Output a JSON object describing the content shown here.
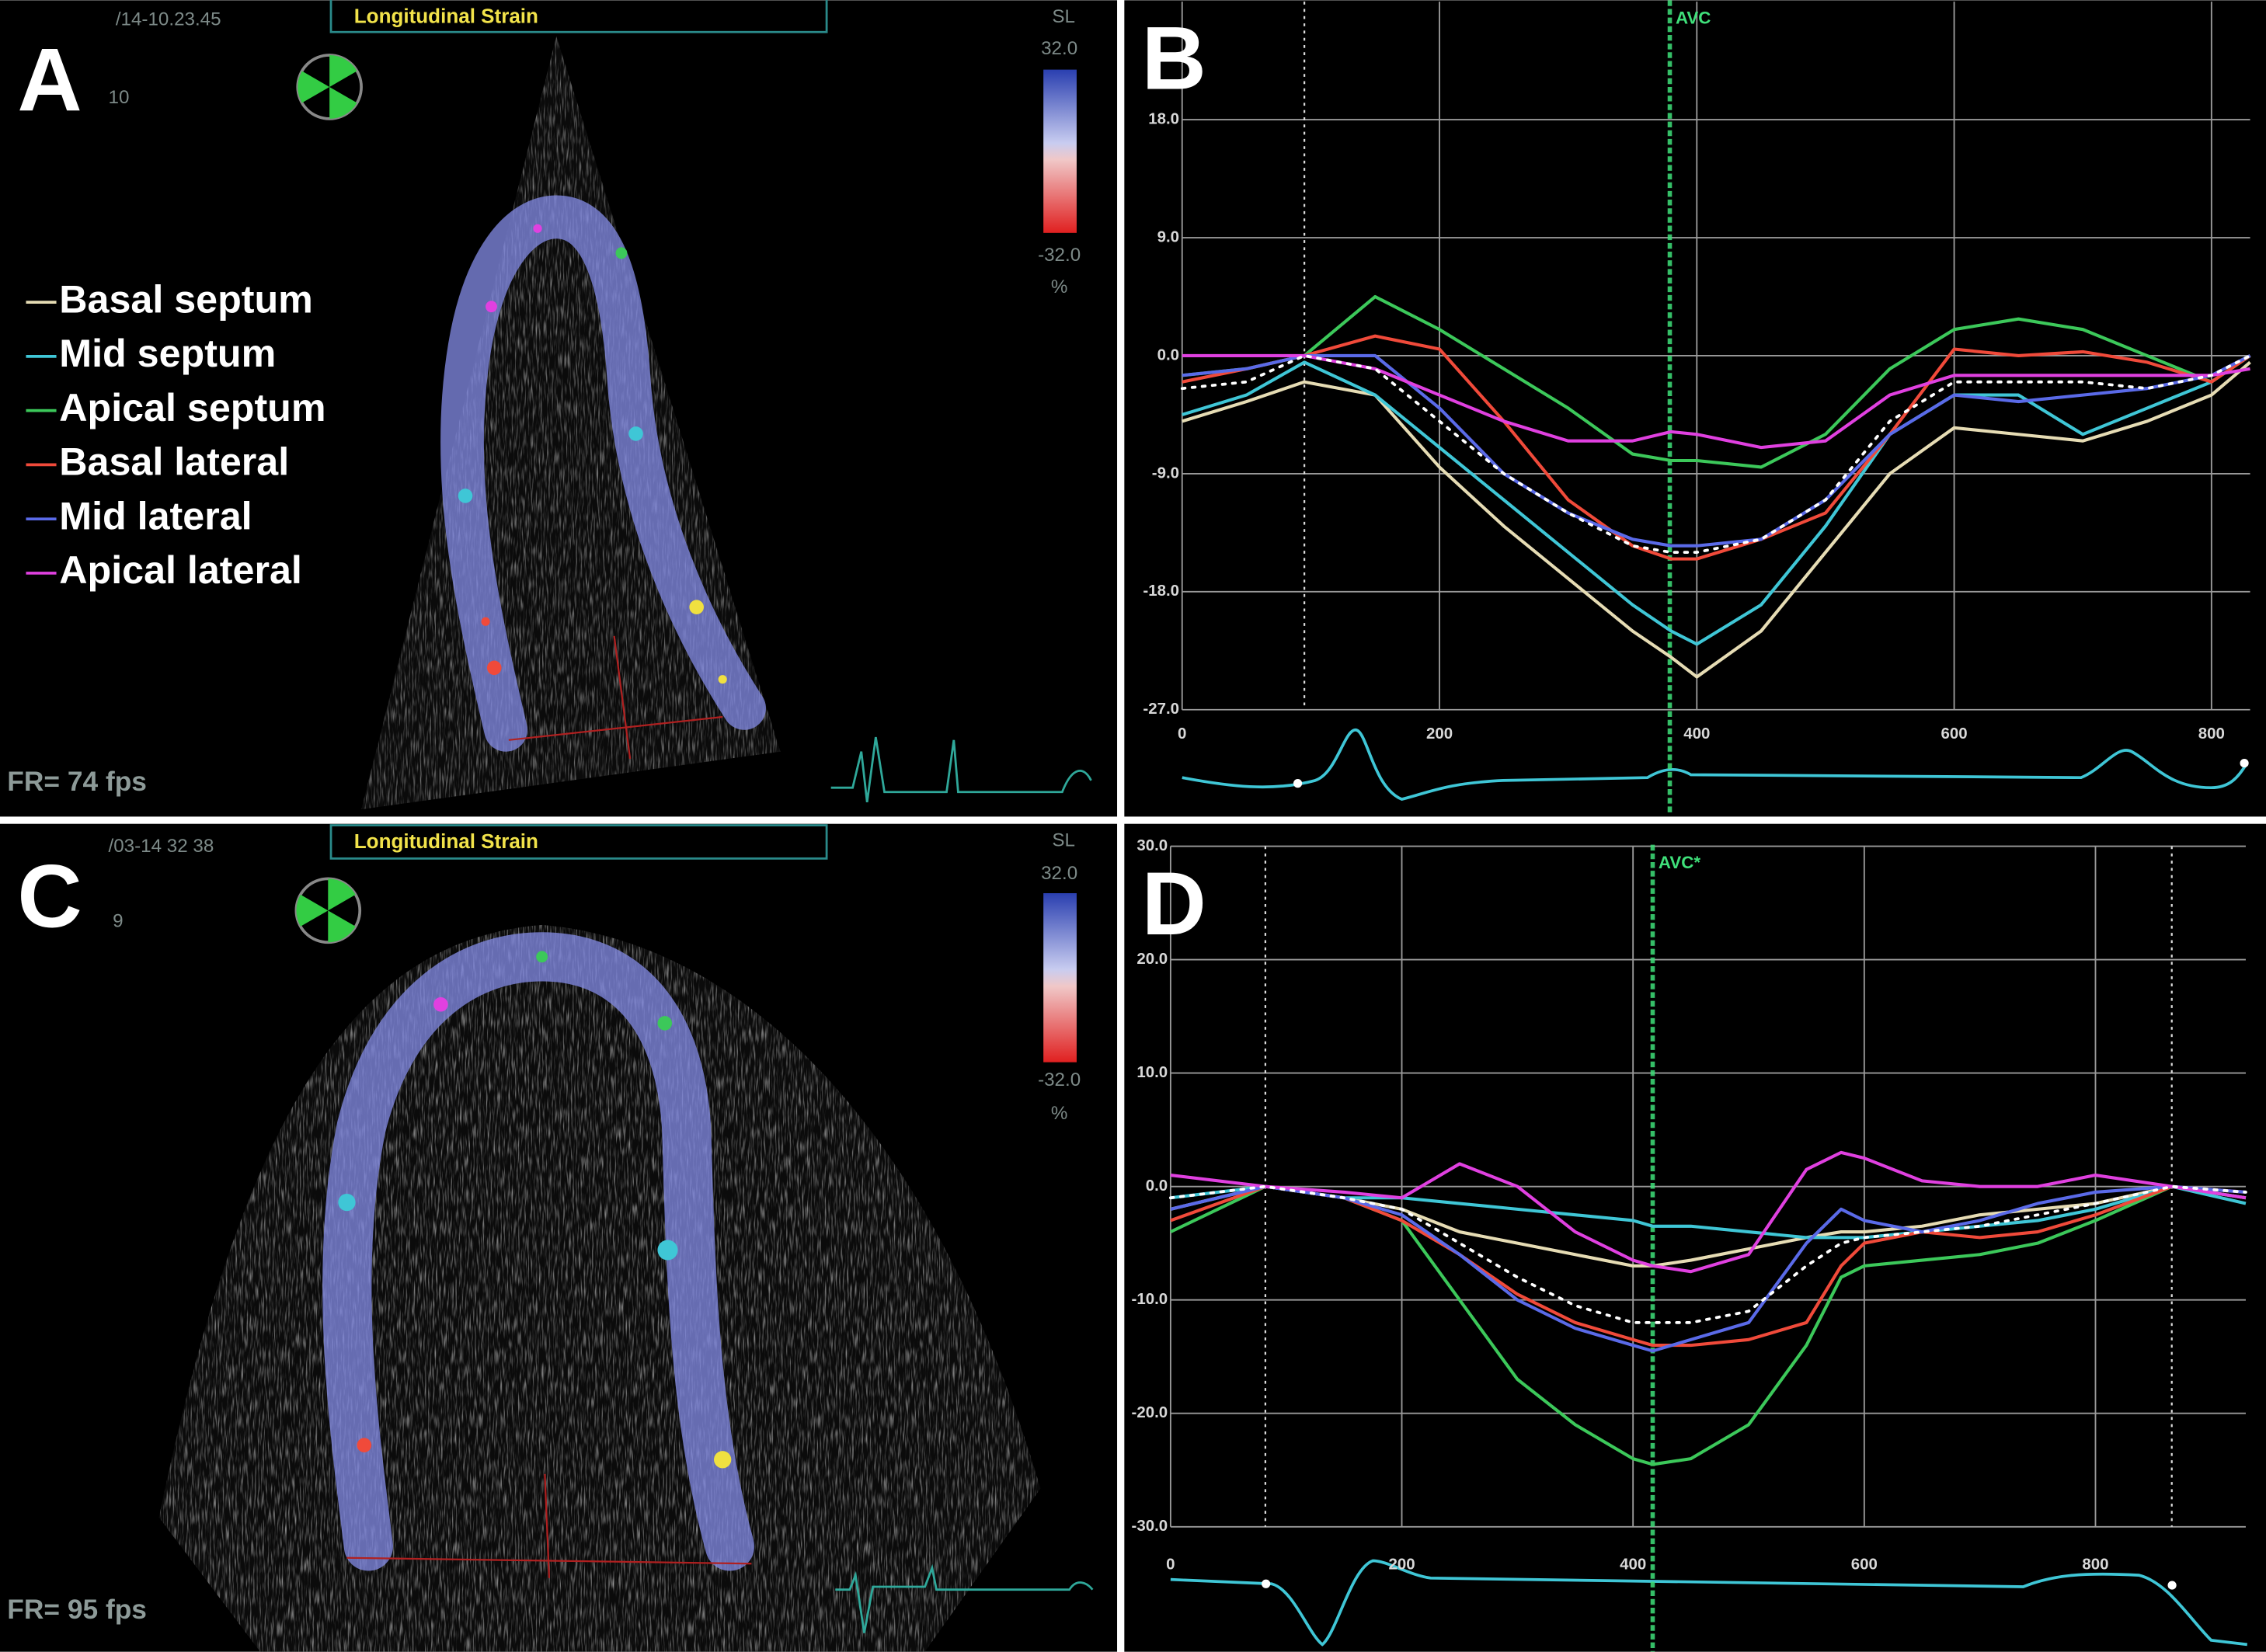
{
  "echo_panels": [
    {
      "label": "A",
      "timestamp": "/14-10.23.45",
      "frame_no": "10",
      "mode": "Longitudinal Strain",
      "scale_name": "SL",
      "scale_max": "32.0",
      "scale_min": "-32.0",
      "scale_unit": "%",
      "frame_rate": "FR=  74 fps"
    },
    {
      "label": "C",
      "timestamp": "/03-14 32 38",
      "frame_no": "9",
      "mode": "Longitudinal Strain",
      "scale_name": "SL",
      "scale_max": "32.0",
      "scale_min": "-32.0",
      "scale_unit": "%",
      "frame_rate": "FR=  95 fps"
    }
  ],
  "chart_data": [
    {
      "type": "line",
      "panel_label": "B",
      "x": [
        0,
        50,
        95,
        150,
        200,
        250,
        300,
        350,
        380,
        400,
        450,
        500,
        550,
        600,
        650,
        700,
        750,
        800,
        830
      ],
      "xlim": [
        0,
        830
      ],
      "xticks": [
        0,
        200,
        400,
        600,
        800
      ],
      "ylim": [
        -27,
        27
      ],
      "yticks": [
        {
          "value": 18,
          "label": "18.0"
        },
        {
          "value": 9,
          "label": "9.0"
        },
        {
          "value": 0,
          "label": "0.0"
        },
        {
          "value": -9,
          "label": "-9.0"
        },
        {
          "value": -18,
          "label": "-18.0"
        },
        {
          "value": -27,
          "label": "-27.0"
        }
      ],
      "grid": true,
      "markers": [
        {
          "x": 95,
          "style": "dotted"
        },
        {
          "x": 379,
          "label": "AVC",
          "color": "#3fe07a"
        }
      ],
      "series": [
        {
          "name": "Basal septum",
          "color": "#e6dcb4",
          "values": [
            -5,
            -3.5,
            -2,
            -3,
            -8.5,
            -13,
            -17,
            -21,
            -23,
            -24.5,
            -21,
            -15,
            -9,
            -5.5,
            -6,
            -6.5,
            -5,
            -3,
            -0.5
          ]
        },
        {
          "name": "Mid septum",
          "color": "#3fc6d6",
          "values": [
            -4.5,
            -3,
            -0.5,
            -3,
            -7,
            -11,
            -15,
            -19,
            -21,
            -22,
            -19,
            -13,
            -6,
            -3,
            -3,
            -6,
            -4,
            -2,
            0
          ]
        },
        {
          "name": "Apical septum",
          "color": "#3cc85a",
          "values": [
            -1.5,
            -1,
            0,
            4.5,
            2,
            -1,
            -4,
            -7.5,
            -8,
            -8,
            -8.5,
            -6,
            -1,
            2,
            2.8,
            2,
            0,
            -2,
            0
          ]
        },
        {
          "name": "Basal lateral",
          "color": "#f04a3a",
          "values": [
            -2,
            -1,
            0,
            1.5,
            0.5,
            -5,
            -11,
            -14.5,
            -15.5,
            -15.5,
            -14,
            -12,
            -6,
            0.5,
            0,
            0.3,
            -0.5,
            -2,
            0
          ]
        },
        {
          "name": "Mid lateral",
          "color": "#5a6ae8",
          "values": [
            -1.5,
            -1,
            0,
            0,
            -4,
            -9,
            -12,
            -14,
            -14.5,
            -14.5,
            -14,
            -11,
            -6,
            -3,
            -3.5,
            -3,
            -2.5,
            -1.5,
            0
          ]
        },
        {
          "name": "Apical lateral",
          "color": "#e040e0",
          "values": [
            0,
            0,
            0,
            -1,
            -3,
            -5,
            -6.5,
            -6.5,
            -5.8,
            -6,
            -7,
            -6.5,
            -3,
            -1.5,
            -1.5,
            -1.5,
            -1.5,
            -1.5,
            -1
          ]
        },
        {
          "color": "#ffffff",
          "style": "dotted",
          "values": [
            -2.5,
            -2,
            0,
            -1,
            -5,
            -9,
            -12,
            -14.5,
            -15,
            -15,
            -14,
            -11,
            -5,
            -2,
            -2,
            -2,
            -2.5,
            -1.5,
            0
          ]
        }
      ]
    },
    {
      "type": "line",
      "panel_label": "D",
      "x": [
        0,
        82,
        150,
        200,
        250,
        300,
        350,
        400,
        417,
        450,
        500,
        550,
        580,
        600,
        650,
        700,
        750,
        800,
        866,
        930
      ],
      "xlim": [
        0,
        930
      ],
      "xticks": [
        0,
        200,
        400,
        600,
        800
      ],
      "ylim": [
        -30,
        30
      ],
      "yticks": [
        {
          "value": 30,
          "label": "30.0"
        },
        {
          "value": 20,
          "label": "20.0"
        },
        {
          "value": 10,
          "label": "10.0"
        },
        {
          "value": 0,
          "label": "0.0"
        },
        {
          "value": -10,
          "label": "-10.0"
        },
        {
          "value": -20,
          "label": "-20.0"
        },
        {
          "value": -30,
          "label": "-30.0"
        }
      ],
      "grid": true,
      "markers": [
        {
          "x": 82,
          "style": "dotted"
        },
        {
          "x": 417,
          "label": "AVC*",
          "color": "#3fe07a"
        },
        {
          "x": 866,
          "style": "dotted"
        }
      ],
      "series": [
        {
          "color": "#e6dcb4",
          "values": [
            -2,
            0,
            -1,
            -2,
            -4,
            -5,
            -6,
            -7,
            -7,
            -6.5,
            -5.5,
            -4.5,
            -4,
            -4,
            -3.5,
            -2.5,
            -2,
            -1.5,
            0,
            -1
          ]
        },
        {
          "color": "#3fc6d6",
          "values": [
            -1,
            0,
            -1,
            -1,
            -1.5,
            -2,
            -2.5,
            -3,
            -3.5,
            -3.5,
            -4,
            -4.5,
            -4.5,
            -4.5,
            -4,
            -3.5,
            -3,
            -2,
            0,
            -1.5
          ]
        },
        {
          "color": "#3cc85a",
          "values": [
            -4,
            0,
            -1,
            -3,
            -10,
            -17,
            -21,
            -24,
            -24.5,
            -24,
            -21,
            -14,
            -8,
            -7,
            -6.5,
            -6,
            -5,
            -3,
            0,
            -1
          ]
        },
        {
          "color": "#f04a3a",
          "values": [
            -3,
            0,
            -1,
            -3,
            -6,
            -9.5,
            -12,
            -13.5,
            -14,
            -14,
            -13.5,
            -12,
            -7,
            -5,
            -4,
            -4.5,
            -4,
            -2.5,
            0,
            -0.5
          ]
        },
        {
          "color": "#5a6ae8",
          "values": [
            -2,
            0,
            -1,
            -2.5,
            -6,
            -10,
            -12.5,
            -14,
            -14.5,
            -13.5,
            -12,
            -5,
            -2,
            -3,
            -4,
            -3,
            -1.5,
            -0.5,
            0,
            -0.5
          ]
        },
        {
          "color": "#e040e0",
          "values": [
            1,
            0,
            -0.5,
            -1,
            2,
            0,
            -4,
            -6.5,
            -7,
            -7.5,
            -6,
            1.5,
            3,
            2.5,
            0.5,
            0,
            0,
            1,
            0,
            -1
          ]
        },
        {
          "color": "#ffffff",
          "style": "dotted",
          "values": [
            -1,
            0,
            -1,
            -2,
            -5,
            -8,
            -10.5,
            -12,
            -12,
            -12,
            -11,
            -7,
            -5,
            -4.5,
            -4,
            -3.5,
            -2.5,
            -1.5,
            0,
            -0.5
          ]
        }
      ]
    }
  ]
}
